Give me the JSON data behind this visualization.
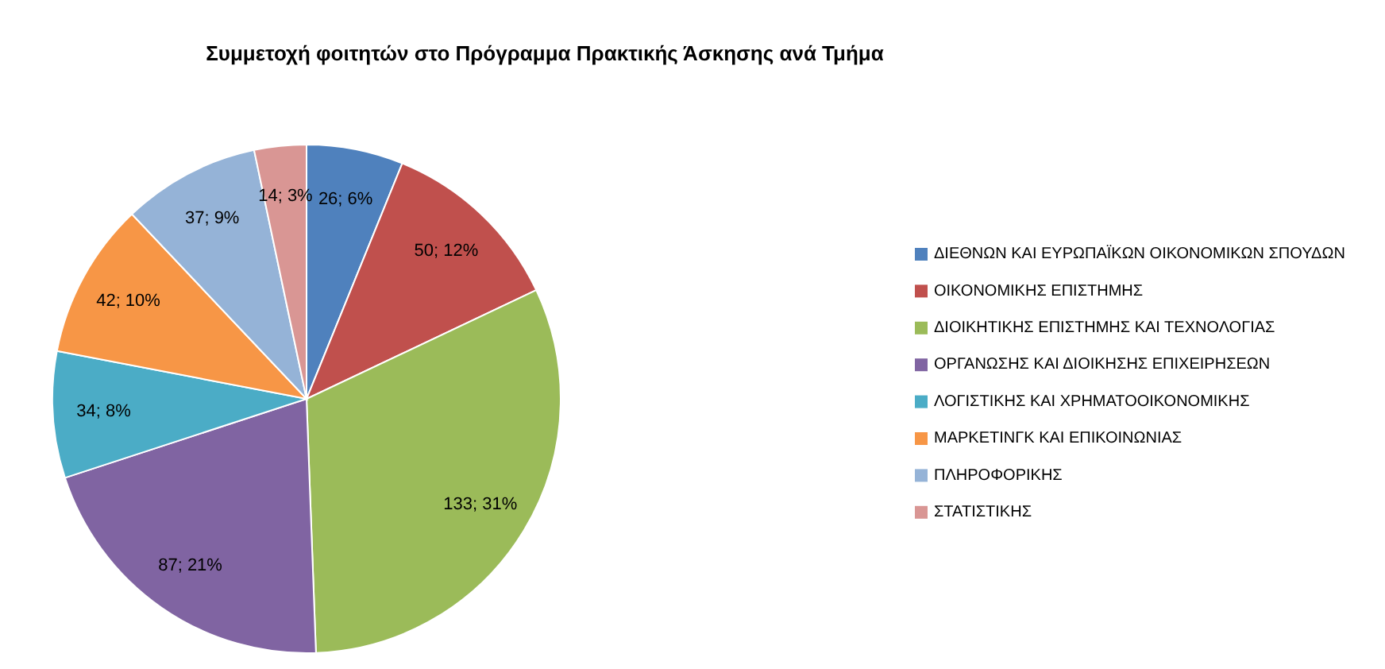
{
  "chart_data": {
    "type": "pie",
    "title": "Συμμετοχή φοιτητών στο Πρόγραμμα Πρακτικής Άσκησης ανά Τμήμα",
    "categories": [
      "ΔΙΕΘΝΩΝ ΚΑΙ ΕΥΡΩΠΑΪΚΩΝ ΟΙΚΟΝΟΜΙΚΩΝ ΣΠΟΥΔΩΝ",
      "ΟΙΚΟΝΟΜΙΚΗΣ ΕΠΙΣΤΗΜΗΣ",
      "ΔΙΟΙΚΗΤΙΚΗΣ ΕΠΙΣΤΗΜΗΣ ΚΑΙ ΤΕΧΝΟΛΟΓΙΑΣ",
      "ΟΡΓΑΝΩΣΗΣ ΚΑΙ ΔΙΟΙΚΗΣΗΣ ΕΠΙΧΕΙΡΗΣΕΩΝ",
      "ΛΟΓΙΣΤΙΚΗΣ ΚΑΙ ΧΡΗΜΑΤΟΟΙΚΟΝΟΜΙΚΗΣ",
      "ΜΑΡΚΕΤΙΝΓΚ ΚΑΙ ΕΠΙΚΟΙΝΩΝΙΑΣ",
      "ΠΛΗΡΟΦΟΡΙΚΗΣ",
      "ΣΤΑΤΙΣΤΙΚΗΣ"
    ],
    "values": [
      26,
      50,
      133,
      87,
      34,
      42,
      37,
      14
    ],
    "value_labels": [
      "26; 6%",
      "50; 12%",
      "133; 31%",
      "87; 21%",
      "34; 8%",
      "42; 10%",
      "37; 9%",
      "14; 3%"
    ],
    "colors": [
      "#4f81bd",
      "#c0504d",
      "#9bbb59",
      "#8064a2",
      "#4bacc6",
      "#f79646",
      "#95b3d7",
      "#d99694"
    ],
    "legend": "right"
  }
}
